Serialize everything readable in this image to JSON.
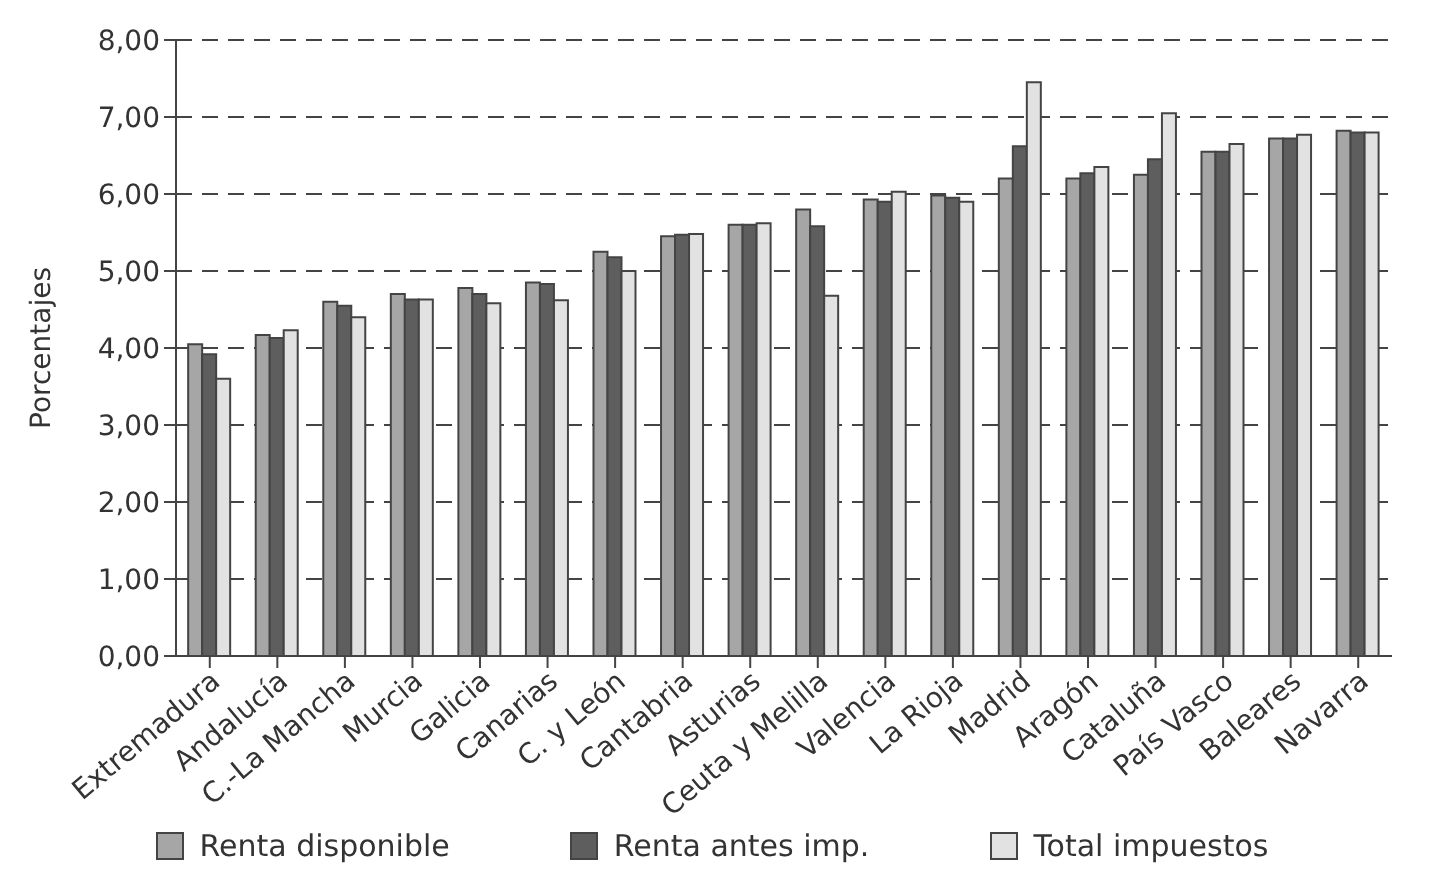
{
  "chart_data": {
    "type": "bar",
    "ylabel": "Porcentajes",
    "categories": [
      "Extremadura",
      "Andalucía",
      "C.-La Mancha",
      "Murcia",
      "Galicia",
      "Canarias",
      "C. y León",
      "Cantabria",
      "Asturias",
      "Ceuta y Melilla",
      "Valencia",
      "La Rioja",
      "Madrid",
      "Aragón",
      "Cataluña",
      "País Vasco",
      "Baleares",
      "Navarra"
    ],
    "series": [
      {
        "name": "Renta disponible",
        "color": "#a6a6a6",
        "values": [
          4.05,
          4.17,
          4.6,
          4.7,
          4.78,
          4.85,
          5.25,
          5.45,
          5.6,
          5.8,
          5.93,
          5.98,
          6.2,
          6.2,
          6.25,
          6.55,
          6.72,
          6.82
        ]
      },
      {
        "name": "Renta antes imp.",
        "color": "#5e5e5e",
        "values": [
          3.92,
          4.13,
          4.55,
          4.63,
          4.7,
          4.83,
          5.18,
          5.47,
          5.6,
          5.58,
          5.9,
          5.95,
          6.62,
          6.27,
          6.45,
          6.55,
          6.72,
          6.8
        ]
      },
      {
        "name": "Total impuestos",
        "color": "#e2e2e2",
        "values": [
          3.6,
          4.23,
          4.4,
          4.63,
          4.58,
          4.62,
          5.0,
          5.48,
          5.62,
          4.68,
          6.03,
          5.9,
          7.45,
          6.35,
          7.05,
          6.65,
          6.77,
          6.8
        ]
      }
    ],
    "ylim": [
      0,
      8
    ],
    "yticks": [
      {
        "value": 0,
        "label": "0,00"
      },
      {
        "value": 1,
        "label": "1,00"
      },
      {
        "value": 2,
        "label": "2,00"
      },
      {
        "value": 3,
        "label": "3,00"
      },
      {
        "value": 4,
        "label": "4,00"
      },
      {
        "value": 5,
        "label": "5,00"
      },
      {
        "value": 6,
        "label": "6,00"
      },
      {
        "value": 7,
        "label": "7,00"
      },
      {
        "value": 8,
        "label": "8,00"
      }
    ],
    "grid": "y",
    "legend": "bottom"
  }
}
